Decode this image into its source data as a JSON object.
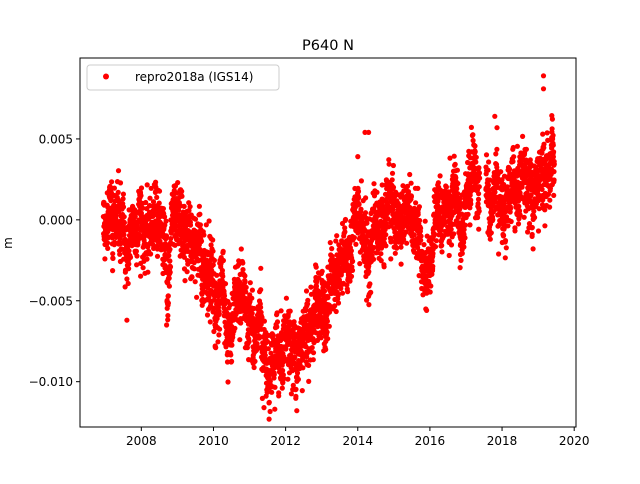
{
  "chart_data": {
    "type": "scatter",
    "title": "P640 N",
    "xlabel": "",
    "ylabel": "m",
    "xlim": [
      2006.3,
      2020.05
    ],
    "ylim": [
      -0.0128,
      0.01
    ],
    "xticks": [
      2008,
      2010,
      2012,
      2014,
      2016,
      2018,
      2020
    ],
    "xtick_labels": [
      "2008",
      "2010",
      "2012",
      "2014",
      "2016",
      "2018",
      "2020"
    ],
    "yticks": [
      0.005,
      0.0,
      -0.005,
      -0.01
    ],
    "ytick_labels": [
      "0.005",
      "0.000",
      "−0.005",
      "−0.010"
    ],
    "legend": {
      "position": "top-left",
      "entries": [
        "repro2018a (IGS14)"
      ]
    },
    "series": [
      {
        "name": "repro2018a (IGS14)",
        "color": "#ff0000",
        "marker": "circle",
        "description_note": "approximate daily positions; trend anchors in m with noise",
        "x_range": [
          2006.95,
          2019.45
        ],
        "gaps": [
          [
            2017.38,
            2017.55
          ]
        ],
        "noise_std": 0.0013,
        "trend": {
          "x": [
            2006.95,
            2007.3,
            2007.6,
            2007.9,
            2008.2,
            2008.6,
            2009.0,
            2009.4,
            2009.7,
            2010.0,
            2010.4,
            2010.8,
            2011.2,
            2011.6,
            2012.0,
            2012.4,
            2012.8,
            2013.2,
            2013.6,
            2014.0,
            2014.4,
            2014.8,
            2015.2,
            2015.6,
            2015.9,
            2016.2,
            2016.6,
            2016.9,
            2017.2,
            2017.7,
            2018.0,
            2018.5,
            2019.0,
            2019.45
          ],
          "y": [
            0.0005,
            0.0005,
            -0.0025,
            -0.0005,
            -0.0005,
            -0.0015,
            -0.0005,
            -0.0015,
            -0.0025,
            -0.0035,
            -0.006,
            -0.0065,
            -0.007,
            -0.0085,
            -0.0075,
            -0.0075,
            -0.0065,
            -0.004,
            -0.0025,
            -0.0005,
            0.0,
            0.0,
            0.0005,
            -0.0005,
            -0.003,
            0.0,
            0.0,
            -0.001,
            0.0015,
            0.001,
            0.0015,
            0.0025,
            0.0025,
            0.003
          ]
        },
        "outliers": {
          "x": [
            2019.15,
            2019.15,
            2007.6,
            2008.7,
            2011.7,
            2011.4,
            2014.2,
            2014.3,
            2017.8
          ],
          "y": [
            0.0089,
            0.0081,
            -0.0062,
            -0.0065,
            -0.0117,
            -0.0116,
            0.0054,
            0.0054,
            0.0064
          ]
        }
      }
    ]
  }
}
